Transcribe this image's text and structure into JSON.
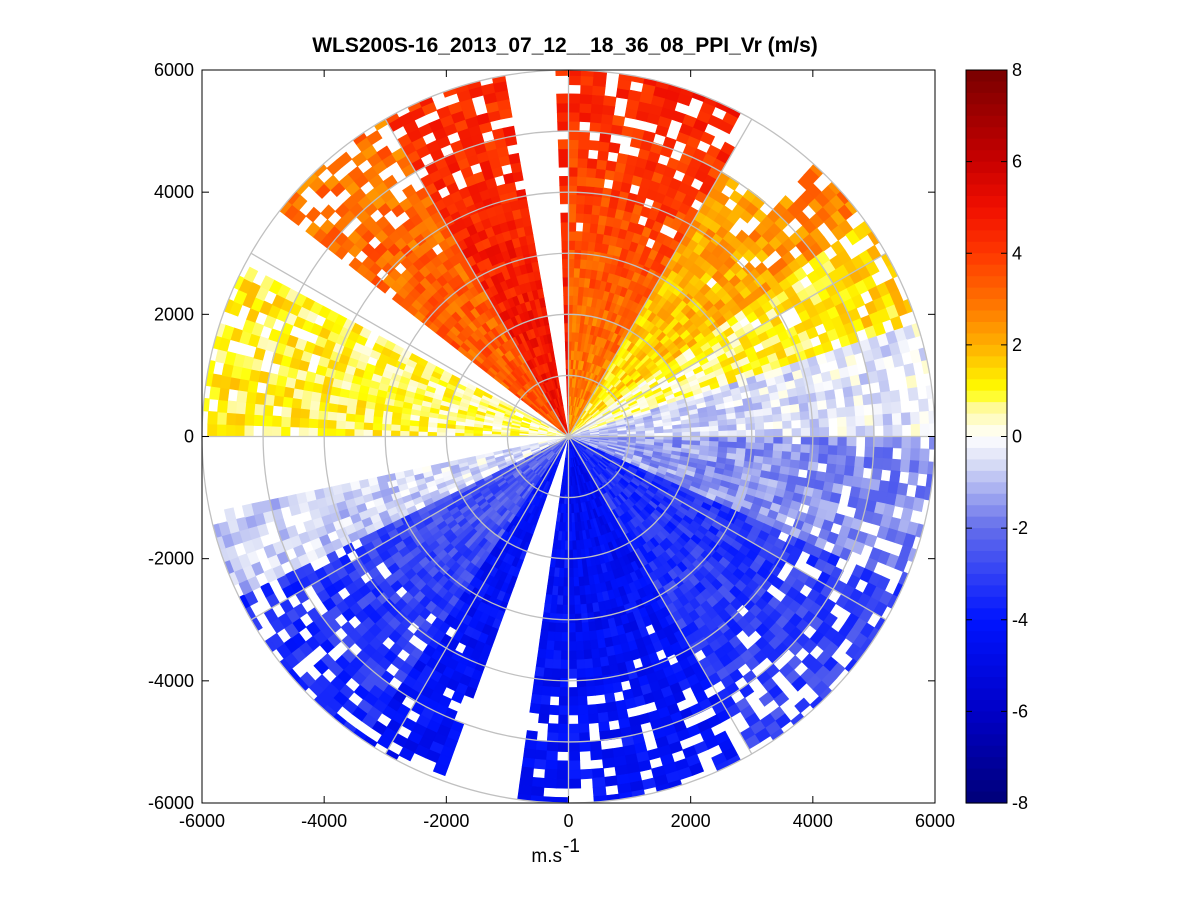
{
  "chart_data": {
    "type": "heatmap",
    "subtype": "polar-ppi",
    "title": "WLS200S-16_2013_07_12__18_36_08_PPI_Vr (m/s)",
    "xlabel": "m.s",
    "xlabel_superscript": "-1",
    "ylabel": "",
    "xlim": [
      -6000,
      6000
    ],
    "ylim": [
      -6000,
      6000
    ],
    "xticks": [
      -6000,
      -4000,
      -2000,
      0,
      2000,
      4000,
      6000
    ],
    "yticks": [
      6000,
      4000,
      2000,
      0,
      -2000,
      -4000,
      -6000
    ],
    "xtick_labels": [
      "-6000",
      "-4000",
      "-2000",
      "0",
      "2000",
      "4000",
      "6000"
    ],
    "ytick_labels": [
      "6000",
      "4000",
      "2000",
      "0",
      "-2000",
      "-4000",
      "-6000"
    ],
    "polar_rings_m": [
      1000,
      2000,
      3000,
      4000,
      5000,
      6000
    ],
    "polar_spokes_deg": [
      0,
      30,
      60,
      90,
      120,
      150,
      180,
      210,
      240,
      270,
      300,
      330
    ],
    "colorbar": {
      "min": -8,
      "max": 8,
      "ticks": [
        8,
        6,
        4,
        2,
        0,
        -2,
        -4,
        -6,
        -8
      ],
      "tick_labels": [
        "8",
        "6",
        "4",
        "2",
        "0",
        "-2",
        "-4",
        "-6",
        "-8"
      ],
      "colormap": "blue-white-red (jet-like diverging)"
    },
    "data_gaps": [
      {
        "bearing_from": 350,
        "bearing_to": 359,
        "range_max": 6000
      },
      {
        "bearing_from": 298,
        "bearing_to": 308,
        "range_max": 6000
      },
      {
        "bearing_from": 258,
        "bearing_to": 270,
        "range_max": 6000
      },
      {
        "bearing_from": 188,
        "bearing_to": 200,
        "range_max": 6000
      },
      {
        "bearing_from": 30,
        "bearing_to": 42,
        "range_min": 5000,
        "range_max": 6000
      }
    ],
    "sectors": [
      {
        "bearing_from": 0,
        "bearing_to": 30,
        "velocity_near": 2.5,
        "velocity_far": 4.5
      },
      {
        "bearing_from": 30,
        "bearing_to": 55,
        "velocity_near": 1.0,
        "velocity_far": 2.8
      },
      {
        "bearing_from": 55,
        "bearing_to": 72,
        "velocity_near": 0.2,
        "velocity_far": 1.5
      },
      {
        "bearing_from": 72,
        "bearing_to": 90,
        "velocity_near": -0.8,
        "velocity_far": -0.3
      },
      {
        "bearing_from": 90,
        "bearing_to": 115,
        "velocity_near": -1.2,
        "velocity_far": -1.8
      },
      {
        "bearing_from": 115,
        "bearing_to": 150,
        "velocity_near": -3.5,
        "velocity_far": -3.0
      },
      {
        "bearing_from": 150,
        "bearing_to": 180,
        "velocity_near": -4.6,
        "velocity_far": -4.2
      },
      {
        "bearing_from": 180,
        "bearing_to": 215,
        "velocity_near": -4.2,
        "velocity_far": -4.4
      },
      {
        "bearing_from": 215,
        "bearing_to": 245,
        "velocity_near": -2.2,
        "velocity_far": -3.6
      },
      {
        "bearing_from": 245,
        "bearing_to": 270,
        "velocity_near": -0.4,
        "velocity_far": -0.9
      },
      {
        "bearing_from": 270,
        "bearing_to": 298,
        "velocity_near": 0.5,
        "velocity_far": 1.2
      },
      {
        "bearing_from": 298,
        "bearing_to": 330,
        "velocity_near": 3.5,
        "velocity_far": 3.0
      },
      {
        "bearing_from": 330,
        "bearing_to": 360,
        "velocity_near": 5.0,
        "velocity_far": 4.2
      }
    ]
  }
}
